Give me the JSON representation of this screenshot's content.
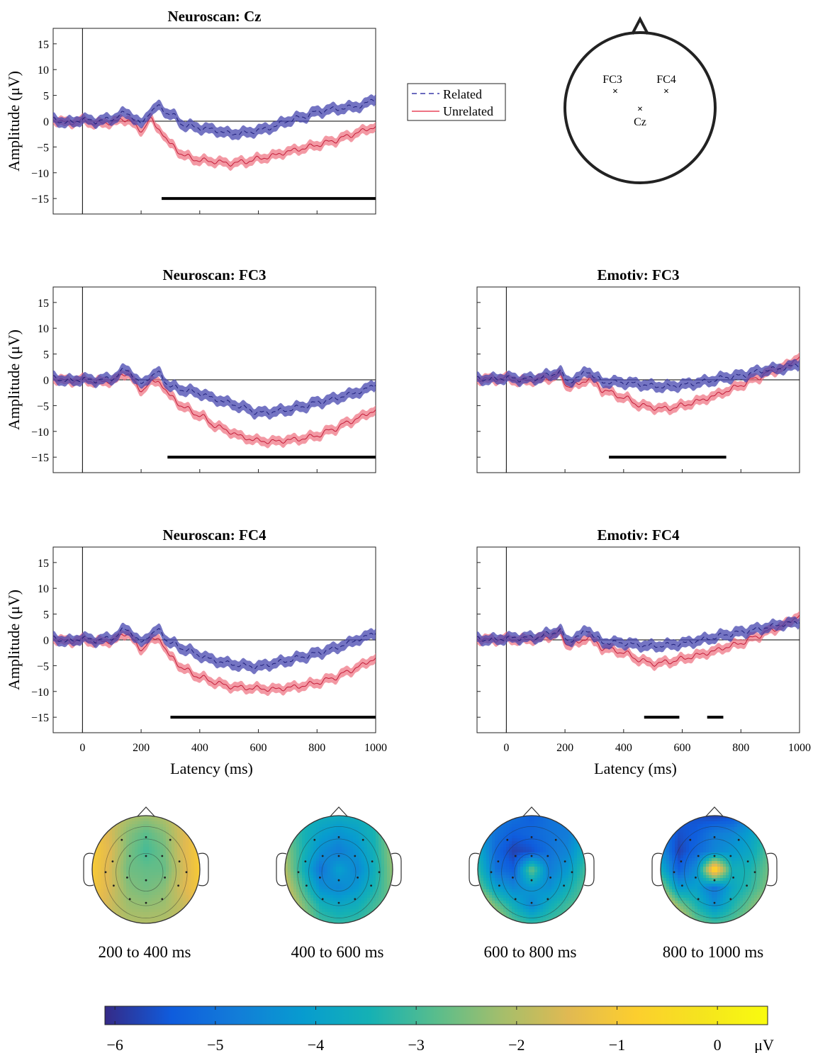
{
  "legend": {
    "items": [
      {
        "label": "Related",
        "color": "#3a3aa8",
        "style": "dashed"
      },
      {
        "label": "Unrelated",
        "color": "#e8455a",
        "style": "solid"
      }
    ]
  },
  "head_diagram": {
    "electrodes": [
      "FC3",
      "FC4",
      "Cz"
    ]
  },
  "colorbar": {
    "ticks": [
      "−6",
      "−5",
      "−4",
      "−3",
      "−2",
      "−1",
      "0"
    ],
    "tick_values": [
      -6,
      -5,
      -4,
      -3,
      -2,
      -1,
      0
    ],
    "unit": "μV",
    "range": [
      -6.1,
      0.5
    ],
    "colormap": "parula"
  },
  "chart_data": [
    {
      "id": "neuroscan-cz",
      "type": "line",
      "title": "Neuroscan: Cz",
      "ylabel": "Amplitude (μV)",
      "xlabel": "",
      "xlim": [
        -100,
        1000
      ],
      "ylim": [
        -18,
        18
      ],
      "yticks": [
        -15,
        -10,
        -5,
        0,
        5,
        10,
        15
      ],
      "xticks": [],
      "x": [
        -100,
        -50,
        0,
        50,
        100,
        150,
        200,
        230,
        260,
        300,
        350,
        400,
        450,
        500,
        550,
        600,
        650,
        700,
        750,
        800,
        850,
        900,
        950,
        1000
      ],
      "series": [
        {
          "name": "Related",
          "values": [
            0.3,
            -0.3,
            0.3,
            0.0,
            0.5,
            1.6,
            -0.5,
            1.8,
            2.8,
            1.3,
            -0.8,
            -1.3,
            -1.7,
            -2.4,
            -2.3,
            -1.8,
            -1.1,
            0.1,
            0.8,
            1.8,
            2.3,
            2.6,
            3.0,
            4.3
          ],
          "band": 1.0
        },
        {
          "name": "Unrelated",
          "values": [
            0.3,
            -0.3,
            0.1,
            -0.5,
            -0.2,
            0.4,
            -1.8,
            0.3,
            -1.5,
            -4.5,
            -6.8,
            -7.6,
            -7.8,
            -8.2,
            -7.9,
            -7.3,
            -6.7,
            -5.9,
            -5.3,
            -4.6,
            -3.9,
            -3.0,
            -2.0,
            -1.0
          ],
          "band": 0.9
        }
      ],
      "significance": [
        [
          270,
          1000
        ]
      ]
    },
    {
      "id": "neuroscan-fc3",
      "type": "line",
      "title": "Neuroscan: FC3",
      "ylabel": "Amplitude (μV)",
      "xlabel": "",
      "xlim": [
        -100,
        1000
      ],
      "ylim": [
        -18,
        18
      ],
      "yticks": [
        -15,
        -10,
        -5,
        0,
        5,
        10,
        15
      ],
      "xticks": [],
      "x": [
        -100,
        -50,
        0,
        50,
        100,
        150,
        200,
        230,
        260,
        300,
        350,
        400,
        450,
        500,
        550,
        600,
        650,
        700,
        750,
        800,
        850,
        900,
        950,
        1000
      ],
      "series": [
        {
          "name": "Related",
          "values": [
            0.4,
            -0.2,
            0.1,
            -0.1,
            0.3,
            2.0,
            -0.8,
            0.6,
            1.3,
            -1.3,
            -2.0,
            -2.6,
            -3.7,
            -4.5,
            -5.4,
            -6.4,
            -6.2,
            -5.8,
            -5.2,
            -4.4,
            -3.8,
            -3.0,
            -2.2,
            -1.0
          ],
          "band": 1.0
        },
        {
          "name": "Unrelated",
          "values": [
            0.3,
            -0.2,
            0.0,
            -0.4,
            -0.2,
            1.3,
            -2.0,
            -0.6,
            -0.3,
            -3.2,
            -5.5,
            -6.9,
            -8.8,
            -10.0,
            -11.2,
            -11.8,
            -12.0,
            -11.7,
            -11.4,
            -10.8,
            -9.7,
            -8.4,
            -7.2,
            -5.8
          ],
          "band": 0.9
        }
      ],
      "significance": [
        [
          290,
          1000
        ]
      ]
    },
    {
      "id": "emotiv-fc3",
      "type": "line",
      "title": "Emotiv: FC3",
      "ylabel": "",
      "xlabel": "",
      "xlim": [
        -100,
        1000
      ],
      "ylim": [
        -18,
        18
      ],
      "yticks": [],
      "xticks": [],
      "x": [
        -100,
        -50,
        0,
        50,
        100,
        150,
        180,
        210,
        240,
        280,
        300,
        330,
        400,
        450,
        500,
        550,
        600,
        650,
        700,
        750,
        800,
        850,
        900,
        950,
        1000
      ],
      "series": [
        {
          "name": "Related",
          "values": [
            0.2,
            0.1,
            0.4,
            0.1,
            0.3,
            0.9,
            1.6,
            -0.3,
            0.3,
            1.8,
            0.5,
            -0.4,
            -0.5,
            -0.8,
            -1.2,
            -1.3,
            -1.0,
            -0.6,
            -0.1,
            0.5,
            0.8,
            1.5,
            2.0,
            2.3,
            3.0
          ],
          "band": 1.0
        },
        {
          "name": "Unrelated",
          "values": [
            0.2,
            0.1,
            0.3,
            -0.3,
            0.0,
            0.4,
            0.9,
            -1.2,
            -1.0,
            0.2,
            -0.6,
            -2.0,
            -3.4,
            -4.8,
            -5.4,
            -5.6,
            -5.0,
            -4.2,
            -3.3,
            -2.2,
            -1.0,
            0.3,
            1.5,
            2.6,
            4.5
          ],
          "band": 0.9
        }
      ],
      "significance": [
        [
          350,
          750
        ]
      ]
    },
    {
      "id": "neuroscan-fc4",
      "type": "line",
      "title": "Neuroscan: FC4",
      "ylabel": "Amplitude (μV)",
      "xlabel": "Latency (ms)",
      "xlim": [
        -100,
        1000
      ],
      "ylim": [
        -18,
        18
      ],
      "yticks": [
        -15,
        -10,
        -5,
        0,
        5,
        10,
        15
      ],
      "xticks": [
        0,
        200,
        400,
        600,
        800,
        1000
      ],
      "x": [
        -100,
        -50,
        0,
        50,
        100,
        150,
        200,
        230,
        260,
        300,
        350,
        400,
        450,
        500,
        550,
        600,
        650,
        700,
        750,
        800,
        850,
        900,
        950,
        1000
      ],
      "series": [
        {
          "name": "Related",
          "values": [
            0.3,
            -0.3,
            0.3,
            -0.1,
            0.4,
            2.1,
            -0.5,
            1.0,
            1.8,
            -0.6,
            -1.8,
            -3.0,
            -4.0,
            -4.6,
            -5.0,
            -5.2,
            -4.6,
            -4.0,
            -3.3,
            -2.6,
            -1.8,
            -0.8,
            0.3,
            1.3
          ],
          "band": 1.0
        },
        {
          "name": "Unrelated",
          "values": [
            0.3,
            -0.3,
            0.0,
            -0.4,
            -0.2,
            1.3,
            -1.8,
            -0.2,
            0.3,
            -3.3,
            -5.8,
            -7.2,
            -8.2,
            -9.0,
            -9.3,
            -9.4,
            -9.6,
            -9.3,
            -8.9,
            -8.3,
            -7.5,
            -6.3,
            -5.0,
            -3.5
          ],
          "band": 0.9
        }
      ],
      "significance": [
        [
          300,
          1000
        ]
      ]
    },
    {
      "id": "emotiv-fc4",
      "type": "line",
      "title": "Emotiv: FC4",
      "ylabel": "",
      "xlabel": "Latency (ms)",
      "xlim": [
        -100,
        1000
      ],
      "ylim": [
        -18,
        18
      ],
      "yticks": [],
      "xticks": [
        0,
        200,
        400,
        600,
        800,
        1000
      ],
      "x": [
        -100,
        -50,
        0,
        50,
        100,
        150,
        180,
        210,
        240,
        280,
        300,
        330,
        400,
        450,
        500,
        550,
        600,
        650,
        700,
        750,
        800,
        850,
        900,
        950,
        1000
      ],
      "series": [
        {
          "name": "Related",
          "values": [
            0.2,
            0.0,
            0.3,
            0.4,
            0.5,
            1.2,
            1.9,
            -0.2,
            0.5,
            2.0,
            0.6,
            -0.5,
            -0.6,
            -1.0,
            -1.2,
            -1.0,
            -0.7,
            -0.2,
            0.4,
            1.0,
            1.5,
            2.0,
            2.6,
            3.1,
            3.4
          ],
          "band": 1.0
        },
        {
          "name": "Unrelated",
          "values": [
            0.2,
            0.0,
            0.2,
            0.0,
            0.2,
            0.8,
            1.3,
            -0.9,
            -0.7,
            0.6,
            -0.5,
            -1.6,
            -2.4,
            -3.8,
            -4.6,
            -4.3,
            -3.7,
            -3.0,
            -2.3,
            -1.4,
            -0.6,
            0.6,
            1.8,
            3.0,
            4.8
          ],
          "band": 0.9
        }
      ],
      "significance": [
        [
          470,
          590
        ],
        [
          685,
          740
        ]
      ]
    },
    {
      "id": "topomap-200-400",
      "type": "heatmap",
      "title": "200 to 400 ms",
      "colormap": "parula",
      "zlim": [
        -6.1,
        0.5
      ],
      "values": [
        [
          -1.2,
          -1.6,
          -2.0,
          -2.2,
          -2.0,
          -1.5,
          -1.1
        ],
        [
          -1.0,
          -1.6,
          -2.4,
          -2.8,
          -2.4,
          -1.6,
          -1.0
        ],
        [
          -0.9,
          -1.5,
          -2.5,
          -3.0,
          -2.6,
          -1.6,
          -0.9
        ],
        [
          -0.9,
          -1.6,
          -2.6,
          -2.7,
          -2.7,
          -1.7,
          -0.9
        ],
        [
          -1.0,
          -1.6,
          -2.4,
          -2.6,
          -2.4,
          -1.6,
          -1.0
        ],
        [
          -1.2,
          -1.7,
          -2.2,
          -2.3,
          -2.2,
          -1.8,
          -1.3
        ],
        [
          -1.4,
          -1.8,
          -2.0,
          -2.0,
          -2.0,
          -1.8,
          -1.5
        ]
      ]
    },
    {
      "id": "topomap-400-600",
      "type": "heatmap",
      "title": "400 to 600 ms",
      "colormap": "parula",
      "zlim": [
        -6.1,
        0.5
      ],
      "values": [
        [
          -3.0,
          -3.4,
          -3.6,
          -3.7,
          -3.6,
          -3.3,
          -2.6
        ],
        [
          -2.6,
          -3.4,
          -4.0,
          -4.3,
          -4.0,
          -3.4,
          -2.1
        ],
        [
          -2.2,
          -3.4,
          -4.4,
          -4.8,
          -4.3,
          -3.5,
          -2.2
        ],
        [
          -2.0,
          -3.5,
          -5.0,
          -4.0,
          -4.6,
          -3.6,
          -2.3
        ],
        [
          -1.6,
          -3.0,
          -4.4,
          -4.6,
          -4.2,
          -3.4,
          -2.4
        ],
        [
          -1.2,
          -2.4,
          -3.5,
          -3.8,
          -3.6,
          -3.0,
          -2.6
        ],
        [
          -1.0,
          -2.0,
          -3.0,
          -3.2,
          -3.1,
          -2.8,
          -2.6
        ]
      ]
    },
    {
      "id": "topomap-600-800",
      "type": "heatmap",
      "title": "600 to 800 ms",
      "colormap": "parula",
      "zlim": [
        -6.1,
        0.5
      ],
      "values": [
        [
          -4.4,
          -4.8,
          -5.0,
          -5.4,
          -5.0,
          -4.8,
          -4.4
        ],
        [
          -4.2,
          -5.0,
          -5.4,
          -5.2,
          -5.0,
          -4.8,
          -4.0
        ],
        [
          -3.6,
          -5.2,
          -5.8,
          -5.6,
          -5.0,
          -4.6,
          -3.4
        ],
        [
          -3.2,
          -5.0,
          -5.4,
          -2.6,
          -4.8,
          -4.2,
          -3.0
        ],
        [
          -2.6,
          -4.0,
          -4.6,
          -4.2,
          -4.4,
          -3.6,
          -2.8
        ],
        [
          -1.0,
          -2.6,
          -3.6,
          -4.6,
          -3.6,
          -3.0,
          -2.6
        ],
        [
          -0.6,
          -1.6,
          -2.8,
          -3.2,
          -3.0,
          -2.8,
          -2.6
        ]
      ]
    },
    {
      "id": "topomap-800-1000",
      "type": "heatmap",
      "title": "800 to 1000 ms",
      "colormap": "parula",
      "zlim": [
        -6.1,
        0.5
      ],
      "values": [
        [
          -5.0,
          -5.4,
          -5.6,
          -5.8,
          -5.6,
          -4.6,
          -3.6
        ],
        [
          -4.8,
          -5.6,
          -5.4,
          -4.8,
          -4.6,
          -4.0,
          -3.2
        ],
        [
          -4.4,
          -5.8,
          -5.2,
          -4.6,
          -4.2,
          -3.8,
          -2.8
        ],
        [
          -3.6,
          -5.4,
          -4.4,
          -0.2,
          -3.6,
          -3.4,
          -2.6
        ],
        [
          -2.2,
          -4.2,
          -4.0,
          -5.0,
          -3.8,
          -3.2,
          -2.4
        ],
        [
          -0.6,
          -2.4,
          -3.4,
          -4.4,
          -3.4,
          -2.6,
          -1.8
        ],
        [
          0.0,
          -1.2,
          -2.6,
          -3.0,
          -2.8,
          -2.2,
          -1.6
        ]
      ]
    }
  ]
}
